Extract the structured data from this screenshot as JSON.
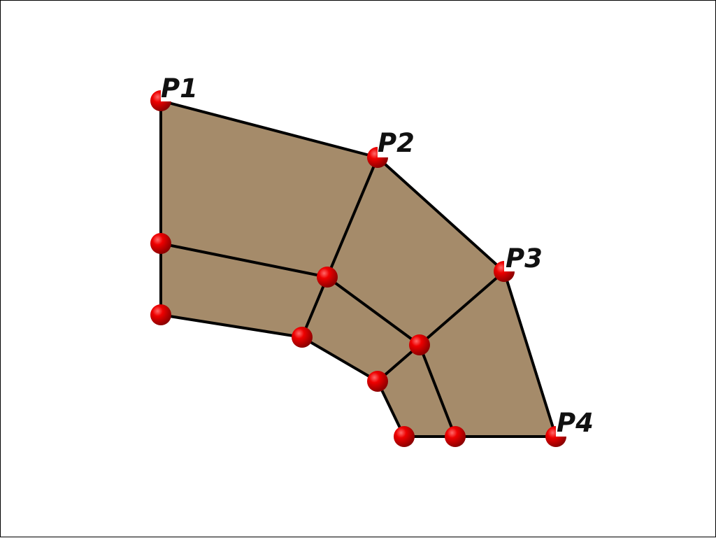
{
  "colors": {
    "face": "#a58b6a",
    "edge": "#000000",
    "vertex": "#e80000",
    "vertex_shade": "#7a0000",
    "background": "#ffffff"
  },
  "labels": {
    "p1": "P1",
    "p2": "P2",
    "p3": "P3",
    "p4": "P4"
  }
}
